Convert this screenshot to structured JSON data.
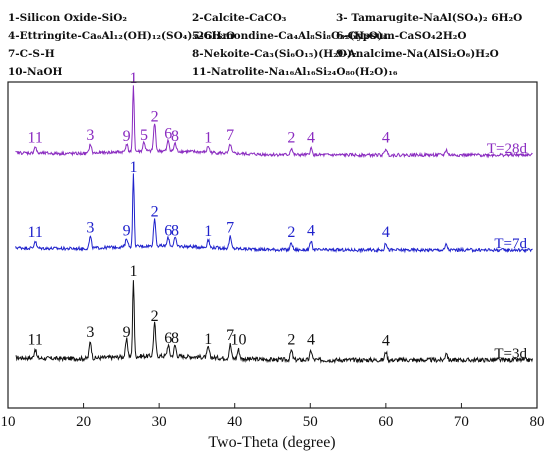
{
  "chart_data": {
    "type": "line",
    "xlabel": "Two-Theta (degree)",
    "xlim": [
      10,
      80
    ],
    "xticks": [
      10,
      20,
      30,
      40,
      50,
      60,
      70,
      80
    ],
    "grid": false,
    "legend": {
      "position": "top",
      "entries": [
        {
          "id": "1",
          "text": "1-Silicon Oxide-SiO₂"
        },
        {
          "id": "2",
          "text": "2-Calcite-CaCO₃"
        },
        {
          "id": "3",
          "text": "3- Tamarugite-NaAl(SO₄)₂ 6H₂O"
        },
        {
          "id": "4",
          "text": "4-Ettringite-Ca₆Al₁₂(OH)₁₂(SO₄)₃26H₂O"
        },
        {
          "id": "5",
          "text": "5-Gismondine-Ca₄Al₈Si₈O₃₂(H₂O)₈"
        },
        {
          "id": "6",
          "text": "6-Gypsum-CaSO₄2H₂O"
        },
        {
          "id": "7",
          "text": "7-C-S-H"
        },
        {
          "id": "8",
          "text": "8-Nekoite-Ca₃(Si₆O₁₅)(H₂O)₇"
        },
        {
          "id": "9",
          "text": "9-Analcime-Na(AlSi₂O₆)H₂O"
        },
        {
          "id": "10",
          "text": "10-NaOH"
        },
        {
          "id": "11",
          "text": "11-Natrolite-Na₁₆Al₁₆Si₂₄O₈₀(H₂O)₁₆"
        }
      ]
    },
    "series": [
      {
        "name": "T=3d",
        "color": "#111111",
        "peaks": [
          {
            "x": 26.6,
            "rel": 1.0,
            "label": "1"
          },
          {
            "x": 29.4,
            "rel": 0.42,
            "label": "2"
          },
          {
            "x": 20.9,
            "rel": 0.22,
            "label": "3"
          },
          {
            "x": 50.1,
            "rel": 0.12,
            "label": "4"
          },
          {
            "x": 31.2,
            "rel": 0.14,
            "label": "6"
          },
          {
            "x": 39.4,
            "rel": 0.18,
            "label": "7"
          },
          {
            "x": 32.1,
            "rel": 0.14,
            "label": "8"
          },
          {
            "x": 25.7,
            "rel": 0.22,
            "label": "9"
          },
          {
            "x": 40.5,
            "rel": 0.12,
            "label": "10"
          },
          {
            "x": 13.6,
            "rel": 0.12,
            "label": "11"
          },
          {
            "x": 36.5,
            "rel": 0.13,
            "label": "1"
          },
          {
            "x": 47.5,
            "rel": 0.12,
            "label": "2"
          },
          {
            "x": 60.0,
            "rel": 0.11,
            "label": "4"
          },
          {
            "x": 68.0,
            "rel": 0.1,
            "label": ""
          }
        ]
      },
      {
        "name": "T=7d",
        "color": "#1f22cc",
        "peaks": [
          {
            "x": 26.6,
            "rel": 1.0,
            "label": "1"
          },
          {
            "x": 29.4,
            "rel": 0.38,
            "label": "2"
          },
          {
            "x": 20.9,
            "rel": 0.16,
            "label": "3"
          },
          {
            "x": 50.1,
            "rel": 0.12,
            "label": "4"
          },
          {
            "x": 31.2,
            "rel": 0.12,
            "label": "6"
          },
          {
            "x": 39.4,
            "rel": 0.16,
            "label": "7"
          },
          {
            "x": 32.1,
            "rel": 0.12,
            "label": "8"
          },
          {
            "x": 25.7,
            "rel": 0.12,
            "label": "9"
          },
          {
            "x": 13.6,
            "rel": 0.1,
            "label": "11"
          },
          {
            "x": 36.5,
            "rel": 0.11,
            "label": "1"
          },
          {
            "x": 47.5,
            "rel": 0.1,
            "label": "2"
          },
          {
            "x": 60.0,
            "rel": 0.1,
            "label": "4"
          },
          {
            "x": 68.0,
            "rel": 0.08,
            "label": ""
          }
        ]
      },
      {
        "name": "T=28d",
        "color": "#8a2bc0",
        "peaks": [
          {
            "x": 26.6,
            "rel": 1.0,
            "label": "1"
          },
          {
            "x": 29.4,
            "rel": 0.42,
            "label": "2"
          },
          {
            "x": 20.9,
            "rel": 0.14,
            "label": "3"
          },
          {
            "x": 50.1,
            "rel": 0.1,
            "label": "4"
          },
          {
            "x": 28.0,
            "rel": 0.14,
            "label": "5"
          },
          {
            "x": 31.2,
            "rel": 0.16,
            "label": "6"
          },
          {
            "x": 39.4,
            "rel": 0.14,
            "label": "7"
          },
          {
            "x": 32.1,
            "rel": 0.12,
            "label": "8"
          },
          {
            "x": 25.7,
            "rel": 0.12,
            "label": "9"
          },
          {
            "x": 13.6,
            "rel": 0.1,
            "label": "11"
          },
          {
            "x": 36.5,
            "rel": 0.1,
            "label": "1"
          },
          {
            "x": 47.5,
            "rel": 0.1,
            "label": "2"
          },
          {
            "x": 60.0,
            "rel": 0.1,
            "label": "4"
          },
          {
            "x": 68.0,
            "rel": 0.08,
            "label": ""
          }
        ]
      }
    ]
  }
}
